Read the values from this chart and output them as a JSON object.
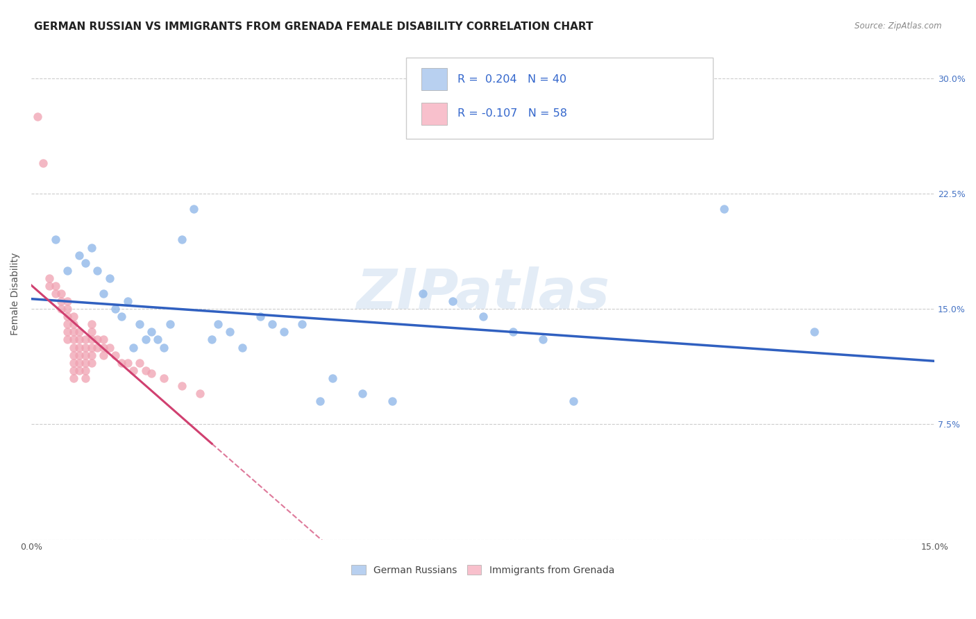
{
  "title": "GERMAN RUSSIAN VS IMMIGRANTS FROM GRENADA FEMALE DISABILITY CORRELATION CHART",
  "source": "Source: ZipAtlas.com",
  "ylabel": "Female Disability",
  "xlim": [
    0.0,
    0.15
  ],
  "ylim": [
    0.0,
    0.32
  ],
  "legend_labels": [
    "German Russians",
    "Immigrants from Grenada"
  ],
  "blue_R": 0.204,
  "blue_N": 40,
  "pink_R": -0.107,
  "pink_N": 58,
  "blue_scatter_color": "#8ab4e8",
  "pink_scatter_color": "#f0a0b0",
  "blue_line_color": "#3060c0",
  "pink_line_color": "#d04070",
  "blue_legend_color": "#b8d0f0",
  "pink_legend_color": "#f8c0cc",
  "blue_scatter": [
    [
      0.004,
      0.195
    ],
    [
      0.006,
      0.175
    ],
    [
      0.008,
      0.185
    ],
    [
      0.009,
      0.18
    ],
    [
      0.01,
      0.19
    ],
    [
      0.011,
      0.175
    ],
    [
      0.012,
      0.16
    ],
    [
      0.013,
      0.17
    ],
    [
      0.014,
      0.15
    ],
    [
      0.015,
      0.145
    ],
    [
      0.016,
      0.155
    ],
    [
      0.017,
      0.125
    ],
    [
      0.018,
      0.14
    ],
    [
      0.019,
      0.13
    ],
    [
      0.02,
      0.135
    ],
    [
      0.021,
      0.13
    ],
    [
      0.022,
      0.125
    ],
    [
      0.023,
      0.14
    ],
    [
      0.025,
      0.195
    ],
    [
      0.027,
      0.215
    ],
    [
      0.03,
      0.13
    ],
    [
      0.031,
      0.14
    ],
    [
      0.033,
      0.135
    ],
    [
      0.035,
      0.125
    ],
    [
      0.038,
      0.145
    ],
    [
      0.04,
      0.14
    ],
    [
      0.042,
      0.135
    ],
    [
      0.045,
      0.14
    ],
    [
      0.048,
      0.09
    ],
    [
      0.05,
      0.105
    ],
    [
      0.055,
      0.095
    ],
    [
      0.06,
      0.09
    ],
    [
      0.065,
      0.16
    ],
    [
      0.07,
      0.155
    ],
    [
      0.075,
      0.145
    ],
    [
      0.08,
      0.135
    ],
    [
      0.085,
      0.13
    ],
    [
      0.09,
      0.09
    ],
    [
      0.115,
      0.215
    ],
    [
      0.13,
      0.135
    ]
  ],
  "pink_scatter": [
    [
      0.001,
      0.275
    ],
    [
      0.002,
      0.245
    ],
    [
      0.003,
      0.17
    ],
    [
      0.003,
      0.165
    ],
    [
      0.004,
      0.165
    ],
    [
      0.004,
      0.16
    ],
    [
      0.005,
      0.16
    ],
    [
      0.005,
      0.155
    ],
    [
      0.005,
      0.15
    ],
    [
      0.006,
      0.155
    ],
    [
      0.006,
      0.15
    ],
    [
      0.006,
      0.145
    ],
    [
      0.006,
      0.14
    ],
    [
      0.006,
      0.135
    ],
    [
      0.006,
      0.13
    ],
    [
      0.007,
      0.145
    ],
    [
      0.007,
      0.14
    ],
    [
      0.007,
      0.135
    ],
    [
      0.007,
      0.13
    ],
    [
      0.007,
      0.125
    ],
    [
      0.007,
      0.12
    ],
    [
      0.007,
      0.115
    ],
    [
      0.007,
      0.11
    ],
    [
      0.007,
      0.105
    ],
    [
      0.008,
      0.135
    ],
    [
      0.008,
      0.13
    ],
    [
      0.008,
      0.125
    ],
    [
      0.008,
      0.12
    ],
    [
      0.008,
      0.115
    ],
    [
      0.008,
      0.11
    ],
    [
      0.009,
      0.13
    ],
    [
      0.009,
      0.125
    ],
    [
      0.009,
      0.12
    ],
    [
      0.009,
      0.115
    ],
    [
      0.009,
      0.11
    ],
    [
      0.009,
      0.105
    ],
    [
      0.01,
      0.14
    ],
    [
      0.01,
      0.135
    ],
    [
      0.01,
      0.13
    ],
    [
      0.01,
      0.125
    ],
    [
      0.01,
      0.12
    ],
    [
      0.01,
      0.115
    ],
    [
      0.011,
      0.13
    ],
    [
      0.011,
      0.125
    ],
    [
      0.012,
      0.13
    ],
    [
      0.012,
      0.125
    ],
    [
      0.012,
      0.12
    ],
    [
      0.013,
      0.125
    ],
    [
      0.014,
      0.12
    ],
    [
      0.015,
      0.115
    ],
    [
      0.016,
      0.115
    ],
    [
      0.017,
      0.11
    ],
    [
      0.018,
      0.115
    ],
    [
      0.019,
      0.11
    ],
    [
      0.02,
      0.108
    ],
    [
      0.022,
      0.105
    ],
    [
      0.025,
      0.1
    ],
    [
      0.028,
      0.095
    ]
  ],
  "background_color": "#ffffff",
  "grid_color": "#cccccc",
  "title_fontsize": 11,
  "ylabel_fontsize": 10,
  "tick_fontsize": 9,
  "watermark_text": "ZIPatlas",
  "watermark_color": "#ccddf0",
  "watermark_alpha": 0.55
}
